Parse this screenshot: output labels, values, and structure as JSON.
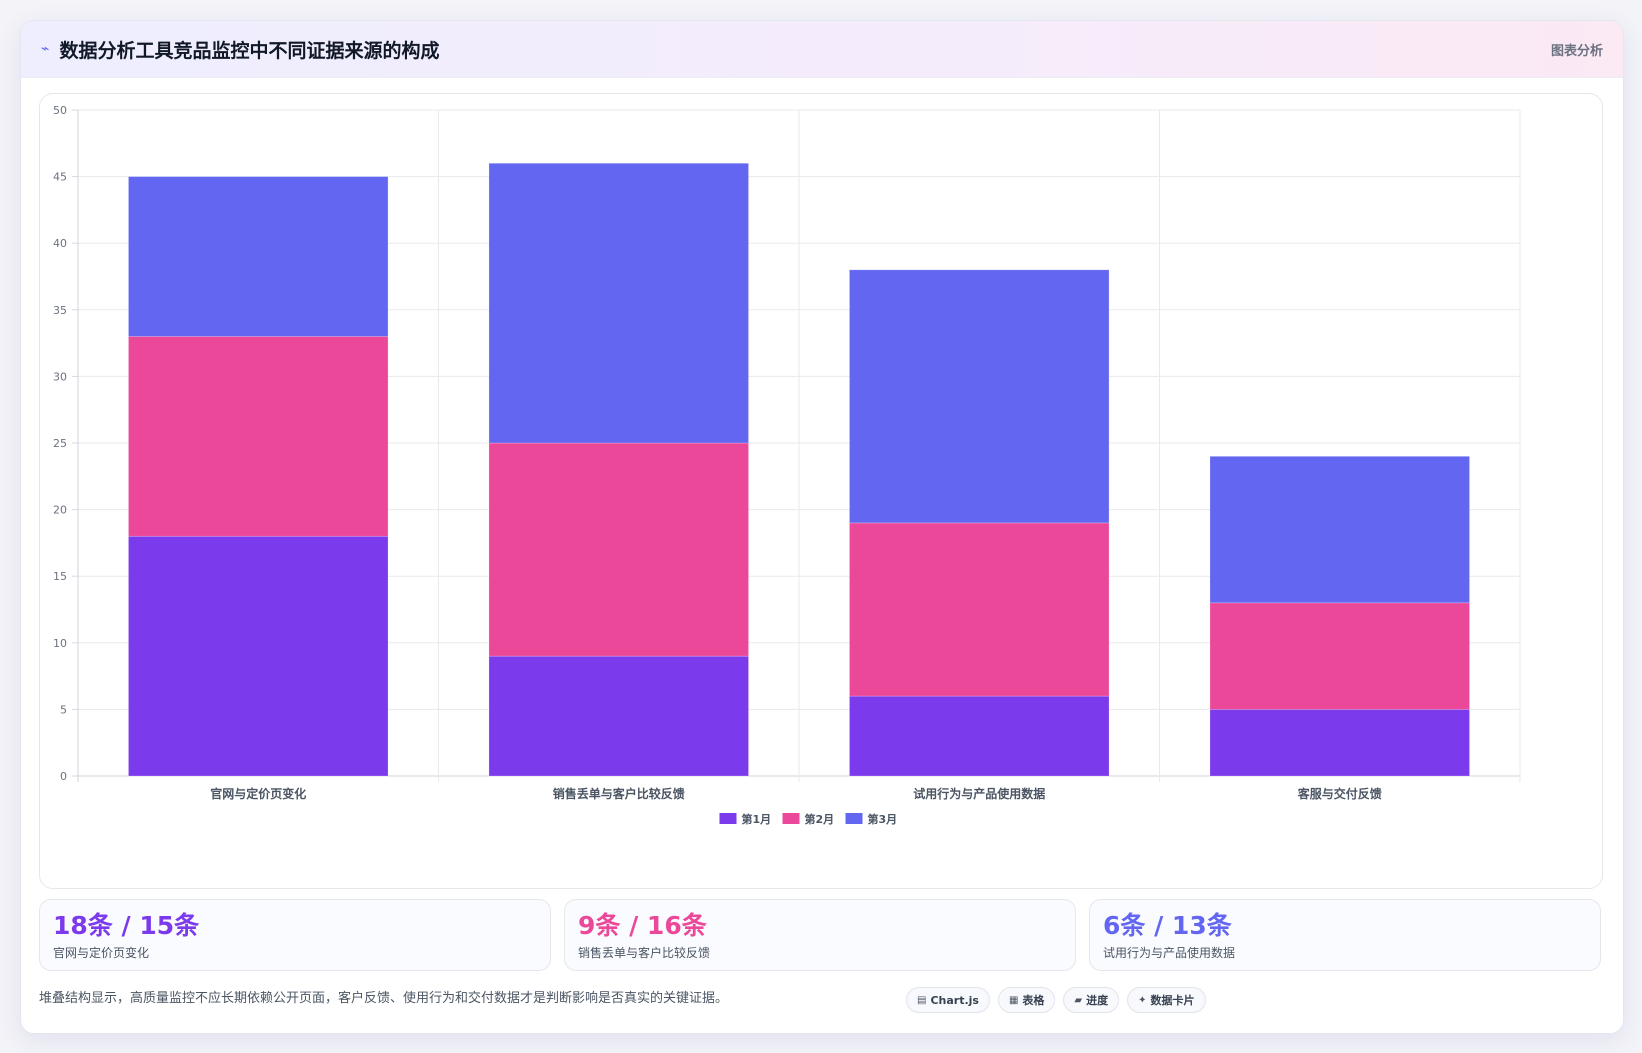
{
  "header": {
    "icon": "trend-line-icon",
    "title": "数据分析工具竞品监控中不同证据来源的构成",
    "tag": "图表分析"
  },
  "chart_data": {
    "type": "bar",
    "stacked": true,
    "categories": [
      "官网与定价页变化",
      "销售丢单与客户比较反馈",
      "试用行为与产品使用数据",
      "客服与交付反馈"
    ],
    "series": [
      {
        "name": "第1月",
        "color": "#7c3aed",
        "values": [
          18,
          9,
          6,
          5
        ]
      },
      {
        "name": "第2月",
        "color": "#ec4899",
        "values": [
          15,
          16,
          13,
          8
        ]
      },
      {
        "name": "第3月",
        "color": "#6366f1",
        "values": [
          12,
          21,
          19,
          11
        ]
      }
    ],
    "ylim": [
      0,
      50
    ],
    "yticks": [
      0,
      5,
      10,
      15,
      20,
      25,
      30,
      35,
      40,
      45,
      50
    ],
    "grid": true,
    "legend": "bottom"
  },
  "stats": [
    {
      "value": "18条 / 15条",
      "label": "官网与定价页变化",
      "color": "#7c3aed"
    },
    {
      "value": "9条 / 16条",
      "label": "销售丢单与客户比较反馈",
      "color": "#ec4899"
    },
    {
      "value": "6条 / 13条",
      "label": "试用行为与产品使用数据",
      "color": "#6366f1"
    }
  ],
  "footer": {
    "note": "堆叠结构显示，高质量监控不应长期依赖公开页面，客户反馈、使用行为和交付数据才是判断影响是否真实的关键证据。",
    "chips": [
      {
        "icon": "chart-icon",
        "glyph": "▤",
        "label": "Chart.js"
      },
      {
        "icon": "table-icon",
        "glyph": "▦",
        "label": "表格"
      },
      {
        "icon": "progress-icon",
        "glyph": "▰",
        "label": "进度"
      },
      {
        "icon": "sparkle-icon",
        "glyph": "✦",
        "label": "数据卡片"
      }
    ]
  }
}
